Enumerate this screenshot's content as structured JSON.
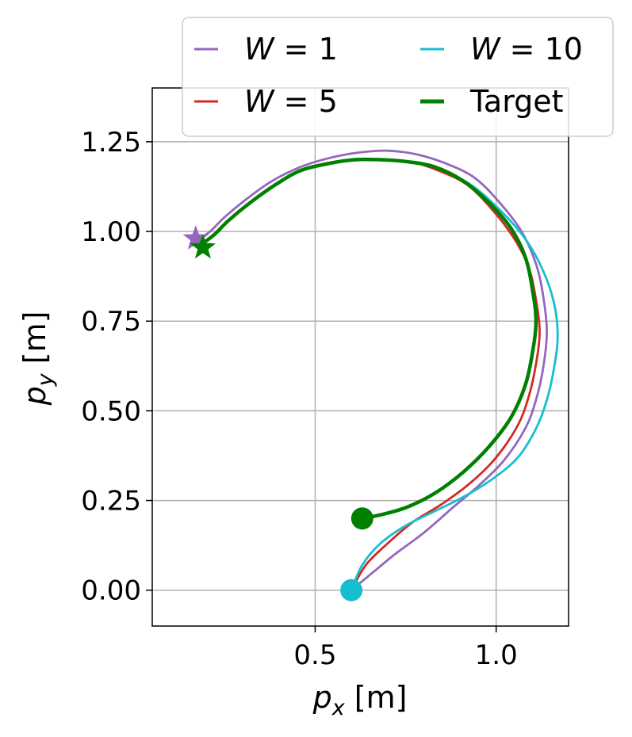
{
  "chart_data": {
    "type": "line",
    "xlabel": "p_x [m]",
    "ylabel": "p_y [m]",
    "xlim": [
      0.05,
      1.2
    ],
    "ylim": [
      -0.1,
      1.4
    ],
    "x_ticks": [
      "0.5",
      "1.0"
    ],
    "y_ticks": [
      "0.00",
      "0.25",
      "0.50",
      "0.75",
      "1.00",
      "1.25"
    ],
    "grid": true,
    "legend": {
      "placement": "top-right",
      "columns": 2
    },
    "series": [
      {
        "name": "W = 1",
        "color": "#9467bd",
        "x": [
          0.6,
          0.66,
          0.72,
          0.8,
          0.88,
          0.95,
          1.02,
          1.08,
          1.11,
          1.13,
          1.14,
          1.13,
          1.11,
          1.07,
          1.01,
          0.94,
          0.86,
          0.78,
          0.7,
          0.62,
          0.54,
          0.46,
          0.38,
          0.31,
          0.25,
          0.21,
          0.18
        ],
        "y": [
          0.0,
          0.05,
          0.1,
          0.16,
          0.23,
          0.29,
          0.36,
          0.45,
          0.53,
          0.62,
          0.72,
          0.82,
          0.91,
          1.0,
          1.08,
          1.15,
          1.19,
          1.215,
          1.225,
          1.22,
          1.205,
          1.18,
          1.14,
          1.09,
          1.04,
          1.0,
          0.98
        ]
      },
      {
        "name": "W = 5",
        "color": "#d62728",
        "x": [
          0.6,
          0.64,
          0.7,
          0.77,
          0.85,
          0.93,
          1.0,
          1.06,
          1.09,
          1.11,
          1.12,
          1.11,
          1.09,
          1.05,
          0.99,
          0.92,
          0.84,
          0.76,
          0.68,
          0.61,
          0.54,
          0.46,
          0.39,
          0.32,
          0.26,
          0.22,
          0.18
        ],
        "y": [
          0.0,
          0.07,
          0.13,
          0.19,
          0.24,
          0.3,
          0.37,
          0.46,
          0.54,
          0.63,
          0.72,
          0.81,
          0.9,
          0.98,
          1.06,
          1.13,
          1.17,
          1.195,
          1.2,
          1.2,
          1.19,
          1.17,
          1.13,
          1.08,
          1.03,
          0.99,
          0.96
        ]
      },
      {
        "name": "W = 10",
        "color": "#17becf",
        "x": [
          0.6,
          0.63,
          0.68,
          0.75,
          0.83,
          0.91,
          0.99,
          1.06,
          1.11,
          1.14,
          1.16,
          1.17,
          1.16,
          1.13,
          1.08,
          1.01,
          0.93,
          0.84,
          0.76,
          0.68,
          0.61,
          0.54,
          0.46,
          0.39,
          0.32,
          0.26,
          0.22,
          0.18
        ],
        "y": [
          0.0,
          0.07,
          0.13,
          0.18,
          0.22,
          0.26,
          0.31,
          0.37,
          0.45,
          0.53,
          0.62,
          0.71,
          0.8,
          0.89,
          0.98,
          1.06,
          1.13,
          1.175,
          1.195,
          1.2,
          1.2,
          1.19,
          1.17,
          1.13,
          1.08,
          1.03,
          0.99,
          0.96
        ]
      },
      {
        "name": "Target",
        "color": "#008000",
        "x": [
          0.63,
          0.68,
          0.75,
          0.83,
          0.91,
          0.98,
          1.04,
          1.08,
          1.1,
          1.11,
          1.1,
          1.08,
          1.04,
          0.98,
          0.91,
          0.83,
          0.75,
          0.68,
          0.61,
          0.54,
          0.46,
          0.39,
          0.32,
          0.26,
          0.22,
          0.18
        ],
        "y": [
          0.2,
          0.21,
          0.23,
          0.27,
          0.33,
          0.4,
          0.48,
          0.57,
          0.66,
          0.75,
          0.84,
          0.93,
          1.01,
          1.08,
          1.14,
          1.18,
          1.195,
          1.2,
          1.2,
          1.19,
          1.17,
          1.13,
          1.08,
          1.03,
          0.99,
          0.96
        ]
      }
    ],
    "markers": [
      {
        "type": "circle",
        "series": "W = 10",
        "x": 0.6,
        "y": 0.0,
        "color": "#17becf"
      },
      {
        "type": "circle",
        "series": "Target",
        "x": 0.63,
        "y": 0.2,
        "color": "#008000"
      },
      {
        "type": "star",
        "series": "W = 1",
        "x": 0.17,
        "y": 0.98,
        "color": "#9467bd"
      },
      {
        "type": "star",
        "series": "Target",
        "x": 0.19,
        "y": 0.955,
        "color": "#008000"
      }
    ]
  }
}
